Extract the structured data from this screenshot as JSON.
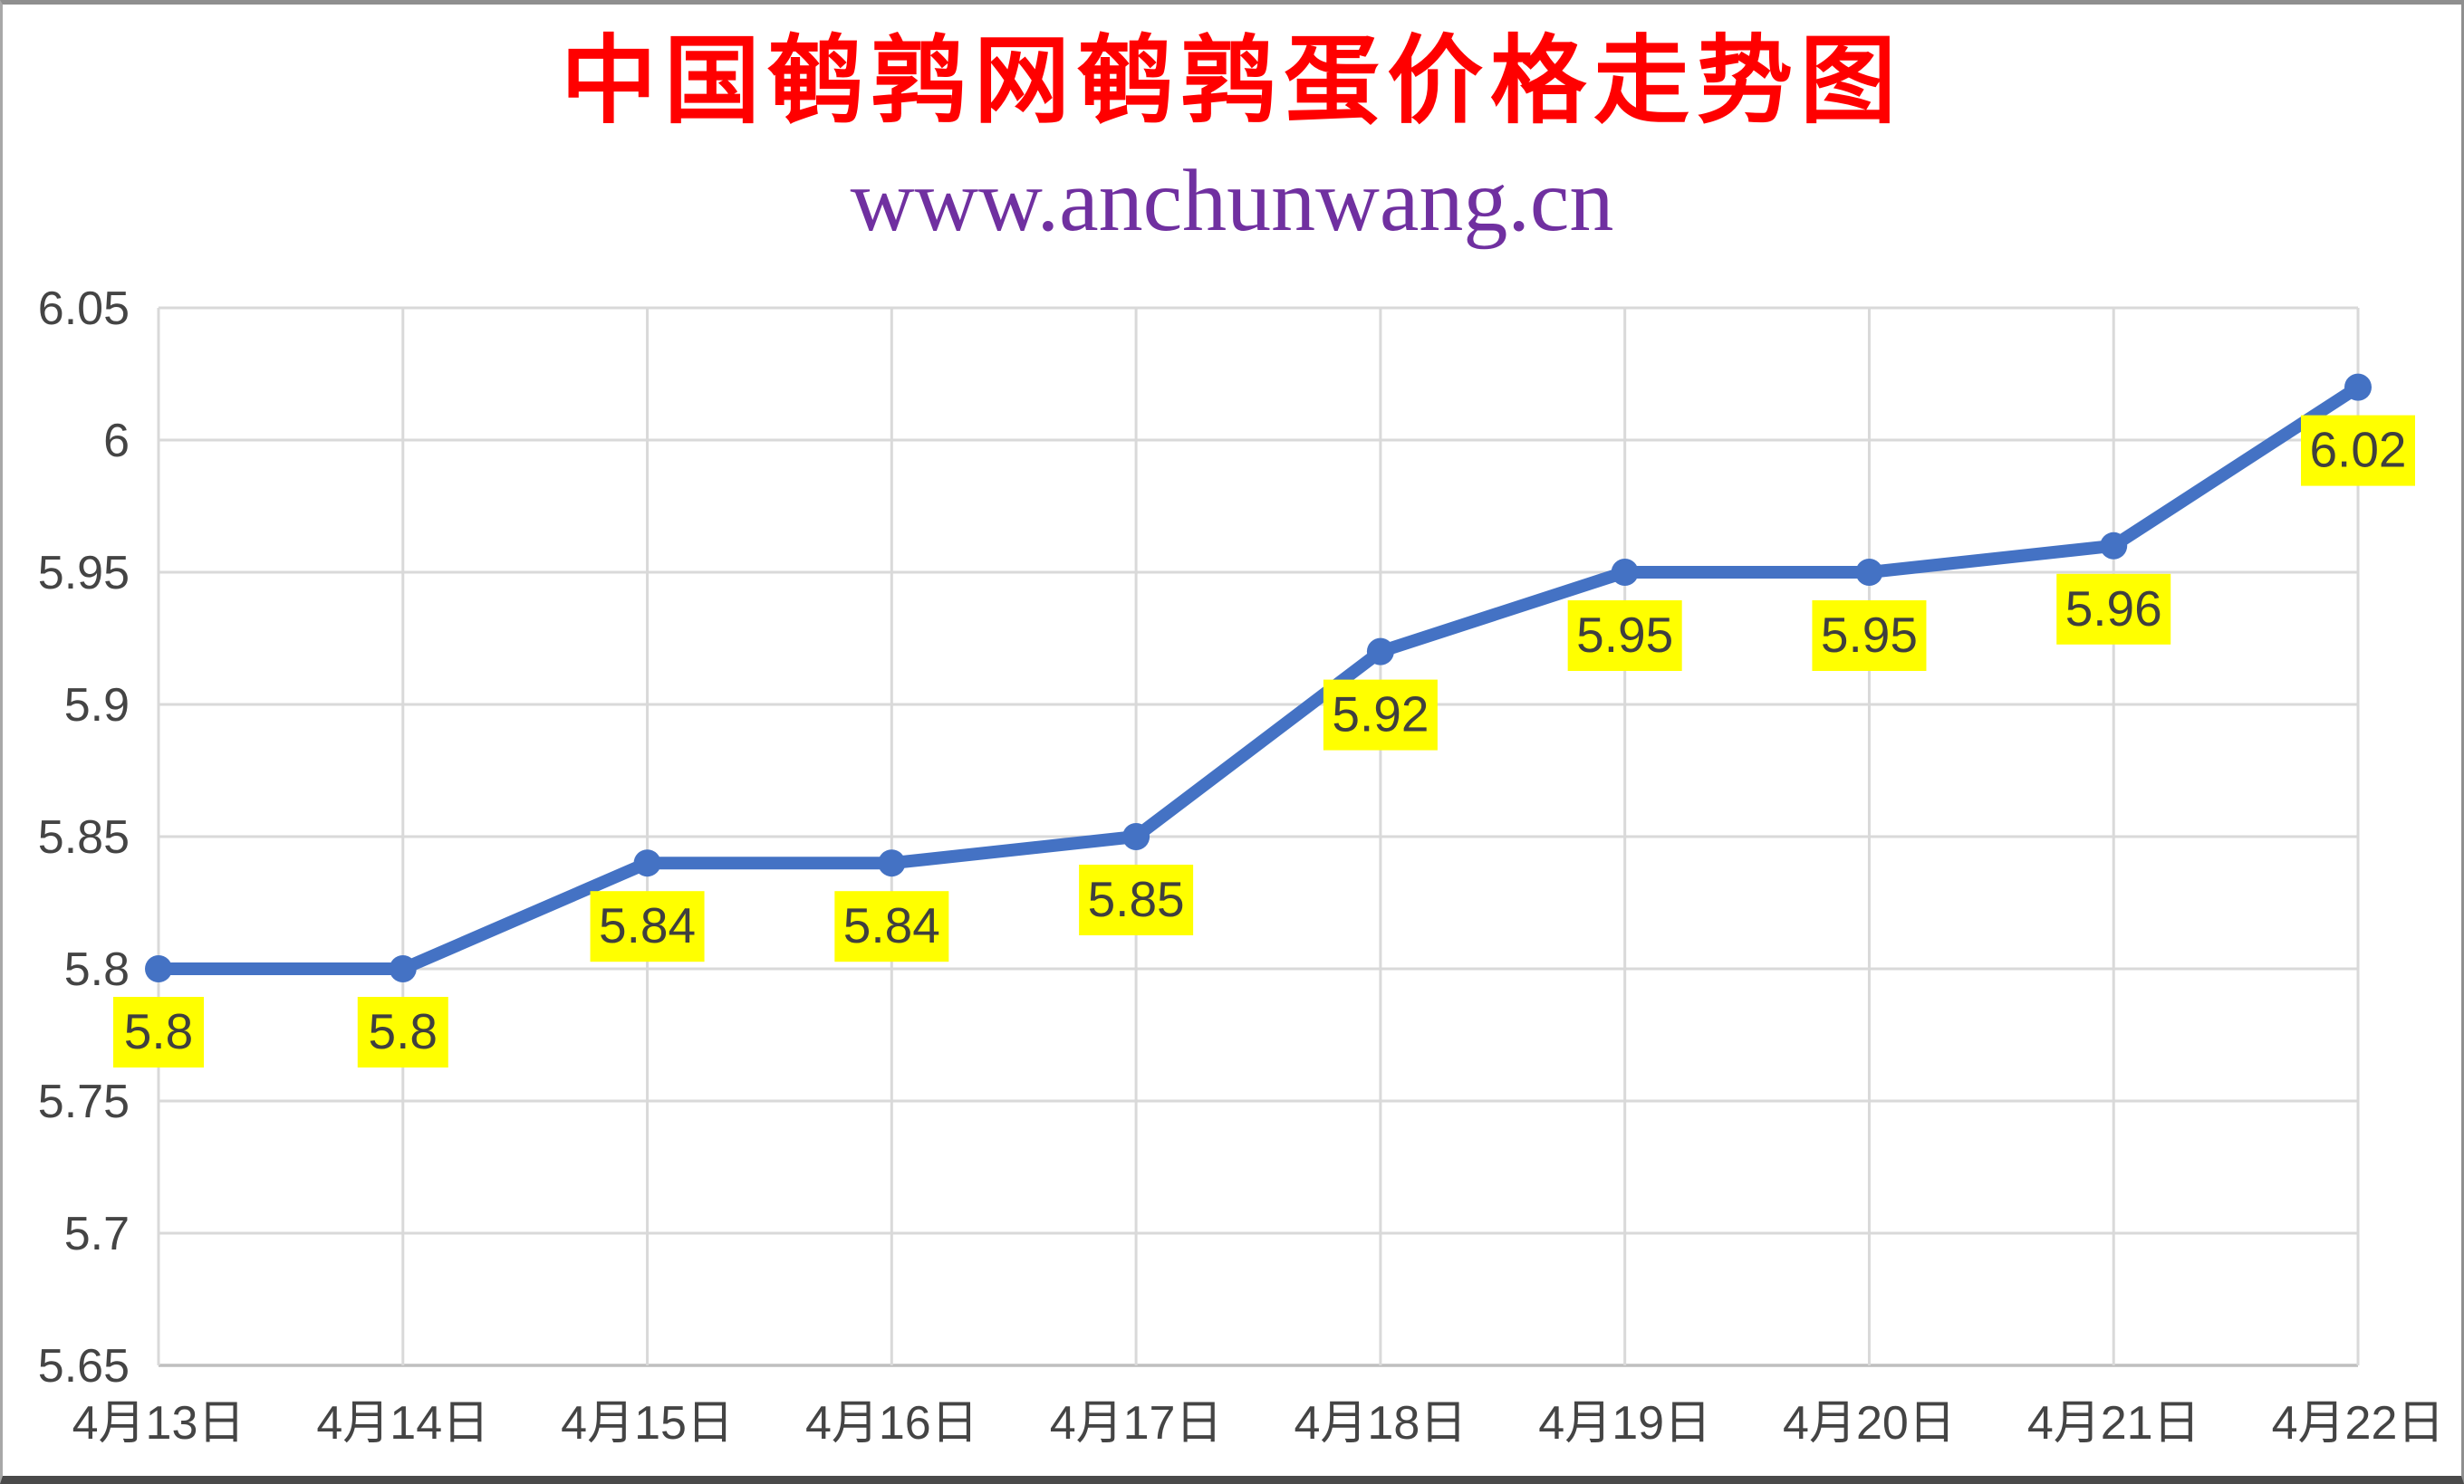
{
  "header": {
    "title": "中国鹌鹑网鹌鹑蛋价格走势图",
    "title_color": "#FF0000",
    "subtitle": "www.anchunwang.cn",
    "subtitle_color": "#7030A0"
  },
  "chart_data": {
    "type": "line",
    "title": "中国鹌鹑网鹌鹑蛋价格走势图",
    "subtitle": "www.anchunwang.cn",
    "categories": [
      "4月13日",
      "4月14日",
      "4月15日",
      "4月16日",
      "4月17日",
      "4月18日",
      "4月19日",
      "4月20日",
      "4月21日",
      "4月22日"
    ],
    "series": [
      {
        "name": "鹌鹑蛋价格",
        "values": [
          5.8,
          5.8,
          5.84,
          5.84,
          5.85,
          5.92,
          5.95,
          5.95,
          5.96,
          6.02
        ],
        "point_labels": [
          "5.8",
          "5.8",
          "5.84",
          "5.84",
          "5.85",
          "5.92",
          "5.95",
          "5.95",
          "5.96",
          "6.02"
        ]
      }
    ],
    "xlabel": "",
    "ylabel": "",
    "ylim": [
      5.65,
      6.05
    ],
    "y_tick_step": 0.05,
    "y_ticks": [
      "6.05",
      "6",
      "5.95",
      "5.9",
      "5.85",
      "5.8",
      "5.75",
      "5.7",
      "5.65"
    ],
    "grid": true,
    "legend_position": "none",
    "colors": {
      "line": "#4472C4",
      "marker": "#4472C4",
      "label_bg": "#FFFF00",
      "label_text": "#3F3F3F",
      "axis_text": "#444444",
      "gridline": "#D9D9D9",
      "axis_line": "#BFBFBF"
    }
  }
}
